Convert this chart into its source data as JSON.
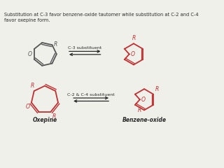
{
  "title_text": "Substitution at C-3 favor benzene-oxide tautomer while substitution at C-2 and C-4\nfavor oxepine form.",
  "text_color": "#2a2a2a",
  "bg_color": "#f0f0eb",
  "gray_color": "#555555",
  "red_color": "#c03030",
  "arrow_color": "#2a2a2a",
  "label_c3": "C-3 substituent",
  "label_c24": "C-2 & C-4 substituent",
  "label_oxepine": "Oxepine",
  "label_benzene_oxide": "Benzene-oxide"
}
